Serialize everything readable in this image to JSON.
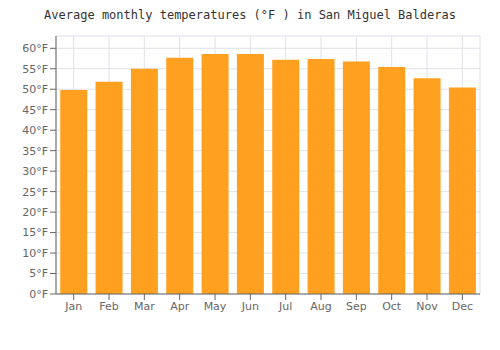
{
  "chart_data": {
    "type": "bar",
    "title": "Average monthly temperatures (°F ) in San Miguel Balderas",
    "categories": [
      "Jan",
      "Feb",
      "Mar",
      "Apr",
      "May",
      "Jun",
      "Jul",
      "Aug",
      "Sep",
      "Oct",
      "Nov",
      "Dec"
    ],
    "values": [
      49.8,
      51.8,
      55.0,
      57.7,
      58.6,
      58.6,
      57.2,
      57.4,
      56.8,
      55.4,
      52.7,
      50.4
    ],
    "color": "#FFA020",
    "ylim": [
      0,
      63
    ],
    "yticks": [
      {
        "value": 0,
        "label": "0°F"
      },
      {
        "value": 5,
        "label": "5°F"
      },
      {
        "value": 10,
        "label": "10°F"
      },
      {
        "value": 15,
        "label": "15°F"
      },
      {
        "value": 20,
        "label": "20°F"
      },
      {
        "value": 25,
        "label": "25°F"
      },
      {
        "value": 30,
        "label": "30°F"
      },
      {
        "value": 35,
        "label": "35°F"
      },
      {
        "value": 40,
        "label": "40°F"
      },
      {
        "value": 45,
        "label": "45°F"
      },
      {
        "value": 50,
        "label": "50°F"
      },
      {
        "value": 55,
        "label": "55°F"
      },
      {
        "value": 60,
        "label": "60°F"
      }
    ],
    "grid": true
  }
}
